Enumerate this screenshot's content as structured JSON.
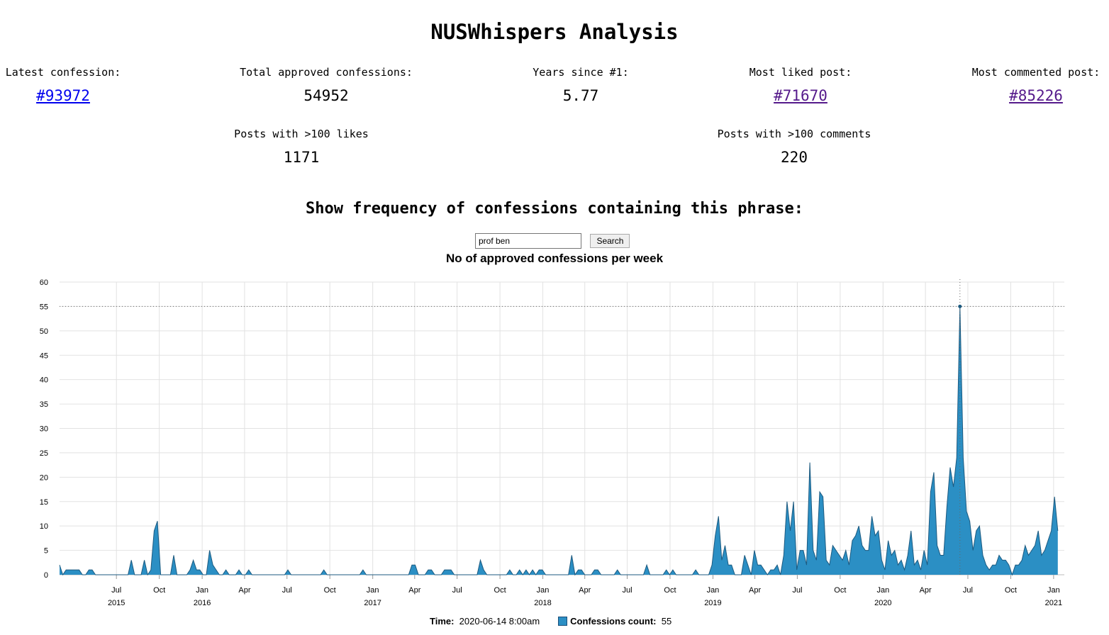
{
  "page": {
    "title": "NUSWhispers Analysis"
  },
  "stats": {
    "latest": {
      "label": "Latest confession:",
      "value": "#93972"
    },
    "total": {
      "label": "Total approved confessions:",
      "value": "54952"
    },
    "years": {
      "label": "Years since #1:",
      "value": "5.77"
    },
    "liked": {
      "label": "Most liked post:",
      "value": "#71670"
    },
    "commented": {
      "label": "Most commented post:",
      "value": "#85226"
    },
    "likes100": {
      "label": "Posts with >100 likes",
      "value": "1171"
    },
    "comments100": {
      "label": "Posts with >100 comments",
      "value": "220"
    }
  },
  "search": {
    "heading": "Show frequency of confessions containing this phrase:",
    "query": "prof ben",
    "button": "Search"
  },
  "legend": {
    "time_label": "Time:",
    "time_value": "2020-06-14 8:00am",
    "count_label": "Confessions count:",
    "count_value": "55"
  },
  "chart_data": {
    "type": "area",
    "title": "No of approved confessions per week",
    "ylim": [
      0,
      60
    ],
    "yticks": [
      0,
      5,
      10,
      15,
      20,
      25,
      30,
      35,
      40,
      45,
      50,
      55,
      60
    ],
    "xlim": [
      "2015-03-01",
      "2021-01-24"
    ],
    "xticks": [
      {
        "date": "2015-07-01",
        "label": "Jul",
        "year": "2015"
      },
      {
        "date": "2015-10-01",
        "label": "Oct",
        "year": ""
      },
      {
        "date": "2016-01-01",
        "label": "Jan",
        "year": "2016"
      },
      {
        "date": "2016-04-01",
        "label": "Apr",
        "year": ""
      },
      {
        "date": "2016-07-01",
        "label": "Jul",
        "year": ""
      },
      {
        "date": "2016-10-01",
        "label": "Oct",
        "year": ""
      },
      {
        "date": "2017-01-01",
        "label": "Jan",
        "year": "2017"
      },
      {
        "date": "2017-04-01",
        "label": "Apr",
        "year": ""
      },
      {
        "date": "2017-07-01",
        "label": "Jul",
        "year": ""
      },
      {
        "date": "2017-10-01",
        "label": "Oct",
        "year": ""
      },
      {
        "date": "2018-01-01",
        "label": "Jan",
        "year": "2018"
      },
      {
        "date": "2018-04-01",
        "label": "Apr",
        "year": ""
      },
      {
        "date": "2018-07-01",
        "label": "Jul",
        "year": ""
      },
      {
        "date": "2018-10-01",
        "label": "Oct",
        "year": ""
      },
      {
        "date": "2019-01-01",
        "label": "Jan",
        "year": "2019"
      },
      {
        "date": "2019-04-01",
        "label": "Apr",
        "year": ""
      },
      {
        "date": "2019-07-01",
        "label": "Jul",
        "year": ""
      },
      {
        "date": "2019-10-01",
        "label": "Oct",
        "year": ""
      },
      {
        "date": "2020-01-01",
        "label": "Jan",
        "year": "2020"
      },
      {
        "date": "2020-04-01",
        "label": "Apr",
        "year": ""
      },
      {
        "date": "2020-07-01",
        "label": "Jul",
        "year": ""
      },
      {
        "date": "2020-10-01",
        "label": "Oct",
        "year": ""
      },
      {
        "date": "2021-01-01",
        "label": "Jan",
        "year": "2021"
      }
    ],
    "series": [
      {
        "name": "Confessions count",
        "color": "#2b8fc4",
        "points": [
          [
            "2015-03-01",
            2
          ],
          [
            "2015-03-08",
            0
          ],
          [
            "2015-03-15",
            1
          ],
          [
            "2015-03-22",
            1
          ],
          [
            "2015-03-29",
            1
          ],
          [
            "2015-04-05",
            1
          ],
          [
            "2015-04-12",
            1
          ],
          [
            "2015-04-19",
            0
          ],
          [
            "2015-04-26",
            0
          ],
          [
            "2015-05-03",
            1
          ],
          [
            "2015-05-10",
            1
          ],
          [
            "2015-05-17",
            0
          ],
          [
            "2015-05-24",
            0
          ],
          [
            "2015-07-26",
            0
          ],
          [
            "2015-08-02",
            3
          ],
          [
            "2015-08-09",
            0
          ],
          [
            "2015-08-16",
            0
          ],
          [
            "2015-08-23",
            0
          ],
          [
            "2015-08-30",
            3
          ],
          [
            "2015-09-06",
            0
          ],
          [
            "2015-09-13",
            1
          ],
          [
            "2015-09-20",
            9
          ],
          [
            "2015-09-27",
            11
          ],
          [
            "2015-10-04",
            0
          ],
          [
            "2015-10-11",
            0
          ],
          [
            "2015-10-18",
            0
          ],
          [
            "2015-10-25",
            0
          ],
          [
            "2015-11-01",
            4
          ],
          [
            "2015-11-08",
            0
          ],
          [
            "2015-11-29",
            0
          ],
          [
            "2015-12-06",
            1
          ],
          [
            "2015-12-13",
            3
          ],
          [
            "2015-12-20",
            1
          ],
          [
            "2015-12-27",
            1
          ],
          [
            "2016-01-03",
            0
          ],
          [
            "2016-01-10",
            0
          ],
          [
            "2016-01-17",
            5
          ],
          [
            "2016-01-24",
            2
          ],
          [
            "2016-01-31",
            1
          ],
          [
            "2016-02-07",
            0
          ],
          [
            "2016-02-14",
            0
          ],
          [
            "2016-02-21",
            1
          ],
          [
            "2016-02-28",
            0
          ],
          [
            "2016-03-06",
            0
          ],
          [
            "2016-03-13",
            0
          ],
          [
            "2016-03-20",
            1
          ],
          [
            "2016-03-27",
            0
          ],
          [
            "2016-04-03",
            0
          ],
          [
            "2016-04-10",
            1
          ],
          [
            "2016-04-17",
            0
          ],
          [
            "2016-06-26",
            0
          ],
          [
            "2016-07-03",
            1
          ],
          [
            "2016-07-10",
            0
          ],
          [
            "2016-09-11",
            0
          ],
          [
            "2016-09-18",
            1
          ],
          [
            "2016-09-25",
            0
          ],
          [
            "2016-12-04",
            0
          ],
          [
            "2016-12-11",
            1
          ],
          [
            "2016-12-18",
            0
          ],
          [
            "2017-03-19",
            0
          ],
          [
            "2017-03-26",
            2
          ],
          [
            "2017-04-02",
            2
          ],
          [
            "2017-04-09",
            0
          ],
          [
            "2017-04-16",
            0
          ],
          [
            "2017-04-23",
            0
          ],
          [
            "2017-04-30",
            1
          ],
          [
            "2017-05-07",
            1
          ],
          [
            "2017-05-14",
            0
          ],
          [
            "2017-05-21",
            0
          ],
          [
            "2017-05-28",
            0
          ],
          [
            "2017-06-04",
            1
          ],
          [
            "2017-06-11",
            1
          ],
          [
            "2017-06-18",
            1
          ],
          [
            "2017-06-25",
            0
          ],
          [
            "2017-08-13",
            0
          ],
          [
            "2017-08-20",
            3
          ],
          [
            "2017-08-27",
            1
          ],
          [
            "2017-09-03",
            0
          ],
          [
            "2017-10-15",
            0
          ],
          [
            "2017-10-22",
            1
          ],
          [
            "2017-10-29",
            0
          ],
          [
            "2017-11-05",
            0
          ],
          [
            "2017-11-12",
            1
          ],
          [
            "2017-11-19",
            0
          ],
          [
            "2017-11-26",
            1
          ],
          [
            "2017-12-03",
            0
          ],
          [
            "2017-12-10",
            1
          ],
          [
            "2017-12-17",
            0
          ],
          [
            "2017-12-24",
            1
          ],
          [
            "2017-12-31",
            1
          ],
          [
            "2018-01-07",
            0
          ],
          [
            "2018-02-25",
            0
          ],
          [
            "2018-03-04",
            4
          ],
          [
            "2018-03-11",
            0
          ],
          [
            "2018-03-18",
            1
          ],
          [
            "2018-03-25",
            1
          ],
          [
            "2018-04-01",
            0
          ],
          [
            "2018-04-08",
            0
          ],
          [
            "2018-04-15",
            0
          ],
          [
            "2018-04-22",
            1
          ],
          [
            "2018-04-29",
            1
          ],
          [
            "2018-05-06",
            0
          ],
          [
            "2018-06-03",
            0
          ],
          [
            "2018-06-10",
            1
          ],
          [
            "2018-06-17",
            0
          ],
          [
            "2018-08-05",
            0
          ],
          [
            "2018-08-12",
            2
          ],
          [
            "2018-08-19",
            0
          ],
          [
            "2018-09-16",
            0
          ],
          [
            "2018-09-23",
            1
          ],
          [
            "2018-09-30",
            0
          ],
          [
            "2018-10-07",
            1
          ],
          [
            "2018-10-14",
            0
          ],
          [
            "2018-11-18",
            0
          ],
          [
            "2018-11-25",
            1
          ],
          [
            "2018-12-02",
            0
          ],
          [
            "2018-12-23",
            0
          ],
          [
            "2018-12-30",
            2
          ],
          [
            "2019-01-06",
            8
          ],
          [
            "2019-01-13",
            12
          ],
          [
            "2019-01-20",
            3
          ],
          [
            "2019-01-27",
            6
          ],
          [
            "2019-02-03",
            2
          ],
          [
            "2019-02-10",
            2
          ],
          [
            "2019-02-17",
            0
          ],
          [
            "2019-02-24",
            0
          ],
          [
            "2019-03-03",
            0
          ],
          [
            "2019-03-10",
            4
          ],
          [
            "2019-03-17",
            2
          ],
          [
            "2019-03-24",
            0
          ],
          [
            "2019-03-31",
            5
          ],
          [
            "2019-04-07",
            2
          ],
          [
            "2019-04-14",
            2
          ],
          [
            "2019-04-21",
            1
          ],
          [
            "2019-04-28",
            0
          ],
          [
            "2019-05-05",
            1
          ],
          [
            "2019-05-12",
            1
          ],
          [
            "2019-05-19",
            2
          ],
          [
            "2019-05-26",
            0
          ],
          [
            "2019-06-02",
            4
          ],
          [
            "2019-06-09",
            15
          ],
          [
            "2019-06-16",
            9
          ],
          [
            "2019-06-23",
            15
          ],
          [
            "2019-06-30",
            1
          ],
          [
            "2019-07-07",
            5
          ],
          [
            "2019-07-14",
            5
          ],
          [
            "2019-07-21",
            2
          ],
          [
            "2019-07-28",
            23
          ],
          [
            "2019-08-04",
            5
          ],
          [
            "2019-08-11",
            3
          ],
          [
            "2019-08-18",
            17
          ],
          [
            "2019-08-25",
            16
          ],
          [
            "2019-09-01",
            3
          ],
          [
            "2019-09-08",
            2
          ],
          [
            "2019-09-15",
            6
          ],
          [
            "2019-09-22",
            5
          ],
          [
            "2019-09-29",
            4
          ],
          [
            "2019-10-06",
            3
          ],
          [
            "2019-10-13",
            5
          ],
          [
            "2019-10-20",
            2
          ],
          [
            "2019-10-27",
            7
          ],
          [
            "2019-11-03",
            8
          ],
          [
            "2019-11-10",
            10
          ],
          [
            "2019-11-17",
            6
          ],
          [
            "2019-11-24",
            5
          ],
          [
            "2019-12-01",
            5
          ],
          [
            "2019-12-08",
            12
          ],
          [
            "2019-12-15",
            8
          ],
          [
            "2019-12-22",
            9
          ],
          [
            "2019-12-29",
            3
          ],
          [
            "2020-01-05",
            1
          ],
          [
            "2020-01-12",
            7
          ],
          [
            "2020-01-19",
            4
          ],
          [
            "2020-01-26",
            5
          ],
          [
            "2020-02-02",
            2
          ],
          [
            "2020-02-09",
            3
          ],
          [
            "2020-02-16",
            1
          ],
          [
            "2020-02-23",
            4
          ],
          [
            "2020-03-01",
            9
          ],
          [
            "2020-03-08",
            2
          ],
          [
            "2020-03-15",
            3
          ],
          [
            "2020-03-22",
            1
          ],
          [
            "2020-03-29",
            5
          ],
          [
            "2020-04-05",
            2
          ],
          [
            "2020-04-12",
            17
          ],
          [
            "2020-04-19",
            21
          ],
          [
            "2020-04-26",
            6
          ],
          [
            "2020-05-03",
            4
          ],
          [
            "2020-05-10",
            4
          ],
          [
            "2020-05-17",
            14
          ],
          [
            "2020-05-24",
            22
          ],
          [
            "2020-05-31",
            18
          ],
          [
            "2020-06-07",
            24
          ],
          [
            "2020-06-14",
            55
          ],
          [
            "2020-06-21",
            24
          ],
          [
            "2020-06-28",
            13
          ],
          [
            "2020-07-05",
            11
          ],
          [
            "2020-07-12",
            5
          ],
          [
            "2020-07-19",
            9
          ],
          [
            "2020-07-26",
            10
          ],
          [
            "2020-08-02",
            4
          ],
          [
            "2020-08-09",
            2
          ],
          [
            "2020-08-16",
            1
          ],
          [
            "2020-08-23",
            2
          ],
          [
            "2020-08-30",
            2
          ],
          [
            "2020-09-06",
            4
          ],
          [
            "2020-09-13",
            3
          ],
          [
            "2020-09-20",
            3
          ],
          [
            "2020-09-27",
            2
          ],
          [
            "2020-10-04",
            0
          ],
          [
            "2020-10-11",
            2
          ],
          [
            "2020-10-18",
            2
          ],
          [
            "2020-10-25",
            3
          ],
          [
            "2020-11-01",
            6
          ],
          [
            "2020-11-08",
            4
          ],
          [
            "2020-11-15",
            5
          ],
          [
            "2020-11-22",
            6
          ],
          [
            "2020-11-29",
            9
          ],
          [
            "2020-12-06",
            4
          ],
          [
            "2020-12-13",
            5
          ],
          [
            "2020-12-20",
            7
          ],
          [
            "2020-12-27",
            9
          ],
          [
            "2021-01-03",
            16
          ],
          [
            "2021-01-10",
            9
          ]
        ]
      }
    ],
    "highlight": {
      "date": "2020-06-14",
      "value": 55
    }
  }
}
